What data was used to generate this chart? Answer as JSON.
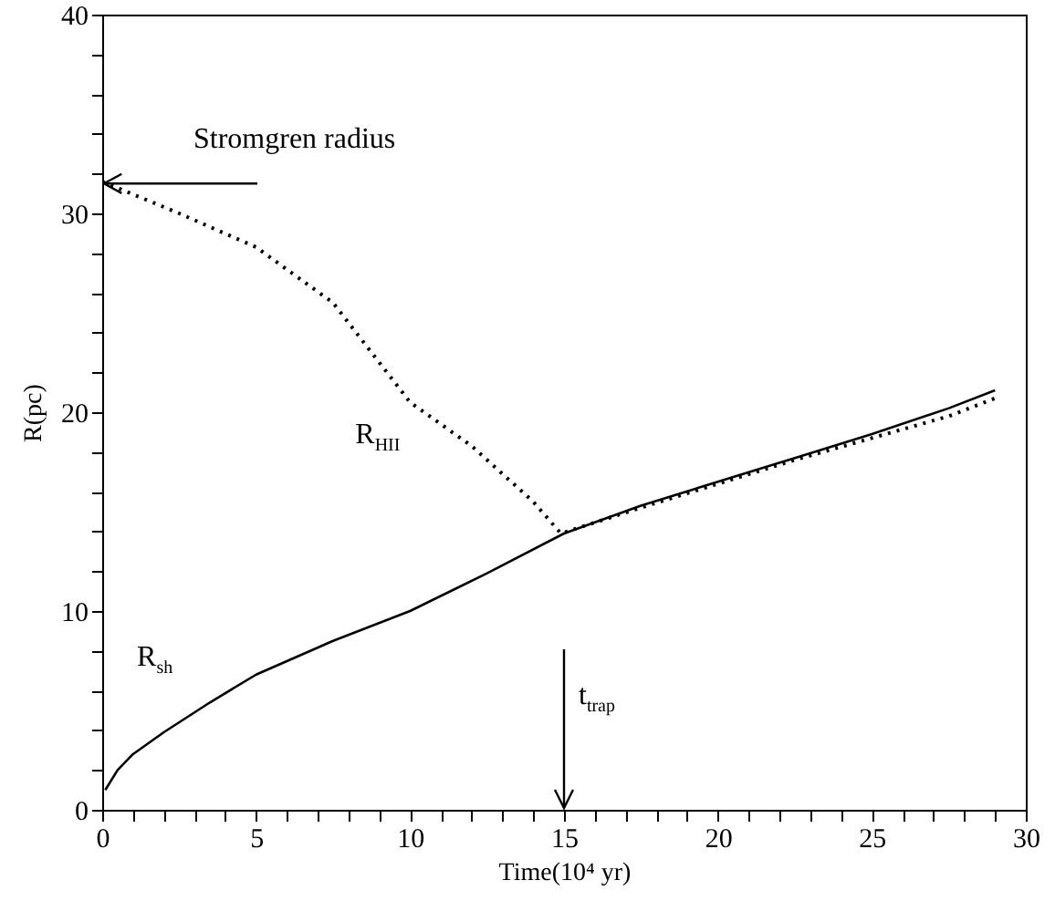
{
  "chart_data": {
    "type": "line",
    "xlabel": "Time(10⁴ yr)",
    "ylabel": "R(pc)",
    "xlim": [
      0,
      30
    ],
    "ylim": [
      0,
      40
    ],
    "xticks": [
      0,
      {
        "value": 1,
        "label": null
      },
      {
        "value": 2,
        "label": null
      },
      {
        "value": 3,
        "label": null
      },
      {
        "value": 4,
        "label": null
      },
      5,
      {
        "value": 6,
        "label": null
      },
      {
        "value": 7,
        "label": null
      },
      {
        "value": 8,
        "label": null
      },
      {
        "value": 9,
        "label": null
      },
      10,
      {
        "value": 11,
        "label": null
      },
      {
        "value": 12,
        "label": null
      },
      {
        "value": 13,
        "label": null
      },
      {
        "value": 14,
        "label": null
      },
      15,
      {
        "value": 16,
        "label": null
      },
      {
        "value": 17,
        "label": null
      },
      {
        "value": 18,
        "label": null
      },
      {
        "value": 19,
        "label": null
      },
      20,
      {
        "value": 21,
        "label": null
      },
      {
        "value": 22,
        "label": null
      },
      {
        "value": 23,
        "label": null
      },
      {
        "value": 24,
        "label": null
      },
      25,
      {
        "value": 26,
        "label": null
      },
      {
        "value": 27,
        "label": null
      },
      {
        "value": 28,
        "label": null
      },
      {
        "value": 29,
        "label": null
      },
      30
    ],
    "yticks": [
      0,
      {
        "value": 2,
        "label": null
      },
      {
        "value": 4,
        "label": null
      },
      {
        "value": 6,
        "label": null
      },
      {
        "value": 8,
        "label": null
      },
      10,
      {
        "value": 12,
        "label": null
      },
      {
        "value": 14,
        "label": null
      },
      {
        "value": 16,
        "label": null
      },
      {
        "value": 18,
        "label": null
      },
      20,
      {
        "value": 22,
        "label": null
      },
      {
        "value": 24,
        "label": null
      },
      {
        "value": 26,
        "label": null
      },
      {
        "value": 28,
        "label": null
      },
      30,
      {
        "value": 32,
        "label": null
      },
      {
        "value": 34,
        "label": null
      },
      {
        "value": 36,
        "label": null
      },
      {
        "value": 38,
        "label": null
      },
      40
    ],
    "grid": false,
    "annotations": [
      {
        "text": "Stromgren radius",
        "x": 0,
        "y": 31.5
      }
    ],
    "ref_lines": [
      {
        "axis": "x",
        "value": 15,
        "label": "t$_{trap}$"
      }
    ],
    "series": [
      {
        "name": "R$_{HII}$",
        "color": "#000000",
        "line_style": "dotted",
        "x": [
          0,
          2.5,
          5,
          7.5,
          10,
          12,
          13,
          14,
          14.9,
          17.5,
          20,
          22.5,
          25,
          27.5,
          29
        ],
        "values": [
          31.6,
          30,
          28.3,
          25.5,
          20.5,
          18.3,
          16.9,
          15.5,
          13.9,
          15.2,
          16.4,
          17.6,
          18.7,
          19.8,
          20.7
        ]
      },
      {
        "name": "R$_{sh}$",
        "color": "#000000",
        "line_style": "solid",
        "x": [
          0.1,
          0.5,
          1,
          2,
          3.5,
          5,
          7.5,
          10,
          12.5,
          15,
          17.5,
          20,
          22.5,
          25,
          27.5,
          29
        ],
        "values": [
          1,
          2,
          2.8,
          3.9,
          5.4,
          6.8,
          8.5,
          10,
          11.9,
          13.9,
          15.3,
          16.5,
          17.7,
          18.9,
          20.2,
          21.1
        ]
      }
    ]
  }
}
